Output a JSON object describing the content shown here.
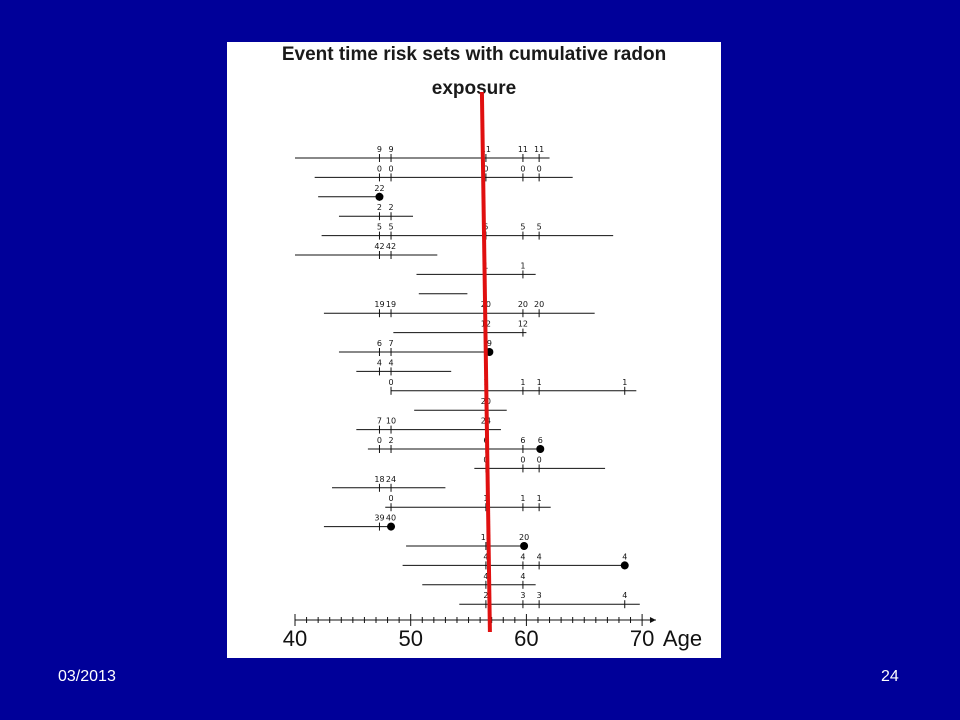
{
  "title_line1": "Event time risk sets with cumulative radon",
  "title_line2": "exposure",
  "footer": {
    "date": "03/2013",
    "page": "24"
  },
  "colors": {
    "background": "#000099",
    "panel": "#ffffff",
    "event_line": "#e01010",
    "ink": "#111111"
  },
  "axis": {
    "ticks": [
      "40",
      "50",
      "60",
      "70"
    ],
    "label": "Age",
    "range": [
      40,
      70
    ]
  },
  "event_line_age": 56.5,
  "subjects": [
    {
      "start": 40,
      "end": 62.0,
      "event": false,
      "marks": [
        {
          "age": 47.3,
          "label": "9"
        },
        {
          "age": 48.3,
          "label": "9"
        },
        {
          "age": 56.5,
          "label": "11"
        },
        {
          "age": 59.7,
          "label": "11"
        },
        {
          "age": 61.1,
          "label": "11"
        }
      ]
    },
    {
      "start": 41.7,
      "end": 64.0,
      "event": false,
      "marks": [
        {
          "age": 47.3,
          "label": "0"
        },
        {
          "age": 48.3,
          "label": "0"
        },
        {
          "age": 56.5,
          "label": "0"
        },
        {
          "age": 59.7,
          "label": "0"
        },
        {
          "age": 61.1,
          "label": "0"
        }
      ]
    },
    {
      "start": 42.0,
      "end": 47.3,
      "event": true,
      "marks": [
        {
          "age": 47.3,
          "label": "22"
        }
      ]
    },
    {
      "start": 43.8,
      "end": 50.2,
      "event": false,
      "marks": [
        {
          "age": 47.3,
          "label": "2"
        },
        {
          "age": 48.3,
          "label": "2"
        }
      ]
    },
    {
      "start": 42.3,
      "end": 67.5,
      "event": false,
      "marks": [
        {
          "age": 47.3,
          "label": "5"
        },
        {
          "age": 48.3,
          "label": "5"
        },
        {
          "age": 56.5,
          "label": "5"
        },
        {
          "age": 59.7,
          "label": "5"
        },
        {
          "age": 61.1,
          "label": "5"
        }
      ]
    },
    {
      "start": 40,
      "end": 52.3,
      "event": false,
      "marks": [
        {
          "age": 47.3,
          "label": "42"
        },
        {
          "age": 48.3,
          "label": "42"
        }
      ]
    },
    {
      "start": 50.5,
      "end": 60.8,
      "event": false,
      "marks": [
        {
          "age": 56.5,
          "label": "1"
        },
        {
          "age": 59.7,
          "label": "1"
        }
      ]
    },
    {
      "start": 50.7,
      "end": 54.9,
      "event": false,
      "marks": []
    },
    {
      "start": 42.5,
      "end": 65.9,
      "event": false,
      "marks": [
        {
          "age": 47.3,
          "label": "19"
        },
        {
          "age": 48.3,
          "label": "19"
        },
        {
          "age": 56.5,
          "label": "20"
        },
        {
          "age": 59.7,
          "label": "20"
        },
        {
          "age": 61.1,
          "label": "20"
        }
      ]
    },
    {
      "start": 48.5,
      "end": 60.0,
      "event": false,
      "marks": [
        {
          "age": 56.5,
          "label": "12"
        },
        {
          "age": 59.7,
          "label": "12"
        }
      ]
    },
    {
      "start": 43.8,
      "end": 56.8,
      "event": true,
      "marks": [
        {
          "age": 47.3,
          "label": "6"
        },
        {
          "age": 48.3,
          "label": "7"
        },
        {
          "age": 56.8,
          "label": "9"
        }
      ]
    },
    {
      "start": 45.3,
      "end": 53.5,
      "event": false,
      "marks": [
        {
          "age": 47.3,
          "label": "4"
        },
        {
          "age": 48.3,
          "label": "4"
        }
      ]
    },
    {
      "start": 48.3,
      "end": 69.5,
      "event": false,
      "marks": [
        {
          "age": 48.3,
          "label": "0"
        },
        {
          "age": 56.5,
          "label": "1"
        },
        {
          "age": 59.7,
          "label": "1"
        },
        {
          "age": 61.1,
          "label": "1"
        },
        {
          "age": 68.5,
          "label": "1"
        }
      ]
    },
    {
      "start": 50.3,
      "end": 58.3,
      "event": false,
      "marks": [
        {
          "age": 56.5,
          "label": "20"
        }
      ]
    },
    {
      "start": 45.3,
      "end": 57.8,
      "event": false,
      "marks": [
        {
          "age": 47.3,
          "label": "7"
        },
        {
          "age": 48.3,
          "label": "10"
        },
        {
          "age": 56.5,
          "label": "24"
        }
      ]
    },
    {
      "start": 46.3,
      "end": 61.2,
      "event": true,
      "marks": [
        {
          "age": 47.3,
          "label": "0"
        },
        {
          "age": 48.3,
          "label": "2"
        },
        {
          "age": 56.5,
          "label": "6"
        },
        {
          "age": 59.7,
          "label": "6"
        },
        {
          "age": 61.2,
          "label": "6"
        }
      ]
    },
    {
      "start": 55.5,
      "end": 66.8,
      "event": false,
      "marks": [
        {
          "age": 56.5,
          "label": "0"
        },
        {
          "age": 59.7,
          "label": "0"
        },
        {
          "age": 61.1,
          "label": "0"
        }
      ]
    },
    {
      "start": 43.2,
      "end": 53.0,
      "event": false,
      "marks": [
        {
          "age": 47.3,
          "label": "18"
        },
        {
          "age": 48.3,
          "label": "24"
        }
      ]
    },
    {
      "start": 47.8,
      "end": 62.1,
      "event": false,
      "marks": [
        {
          "age": 48.3,
          "label": "0"
        },
        {
          "age": 56.5,
          "label": "1"
        },
        {
          "age": 59.7,
          "label": "1"
        },
        {
          "age": 61.1,
          "label": "1"
        }
      ]
    },
    {
      "start": 42.5,
      "end": 48.3,
      "event": true,
      "marks": [
        {
          "age": 47.3,
          "label": "39"
        },
        {
          "age": 48.3,
          "label": "40"
        }
      ]
    },
    {
      "start": 49.6,
      "end": 59.8,
      "event": true,
      "marks": [
        {
          "age": 56.5,
          "label": "18"
        },
        {
          "age": 59.8,
          "label": "20"
        }
      ]
    },
    {
      "start": 49.3,
      "end": 68.5,
      "event": true,
      "marks": [
        {
          "age": 56.5,
          "label": "4"
        },
        {
          "age": 59.7,
          "label": "4"
        },
        {
          "age": 61.1,
          "label": "4"
        },
        {
          "age": 68.5,
          "label": "4"
        }
      ]
    },
    {
      "start": 51.0,
      "end": 60.8,
      "event": false,
      "marks": [
        {
          "age": 56.5,
          "label": "4"
        },
        {
          "age": 59.7,
          "label": "4"
        }
      ]
    },
    {
      "start": 54.2,
      "end": 69.8,
      "event": false,
      "marks": [
        {
          "age": 56.5,
          "label": "2"
        },
        {
          "age": 59.7,
          "label": "3"
        },
        {
          "age": 61.1,
          "label": "3"
        },
        {
          "age": 68.5,
          "label": "4"
        }
      ]
    }
  ]
}
